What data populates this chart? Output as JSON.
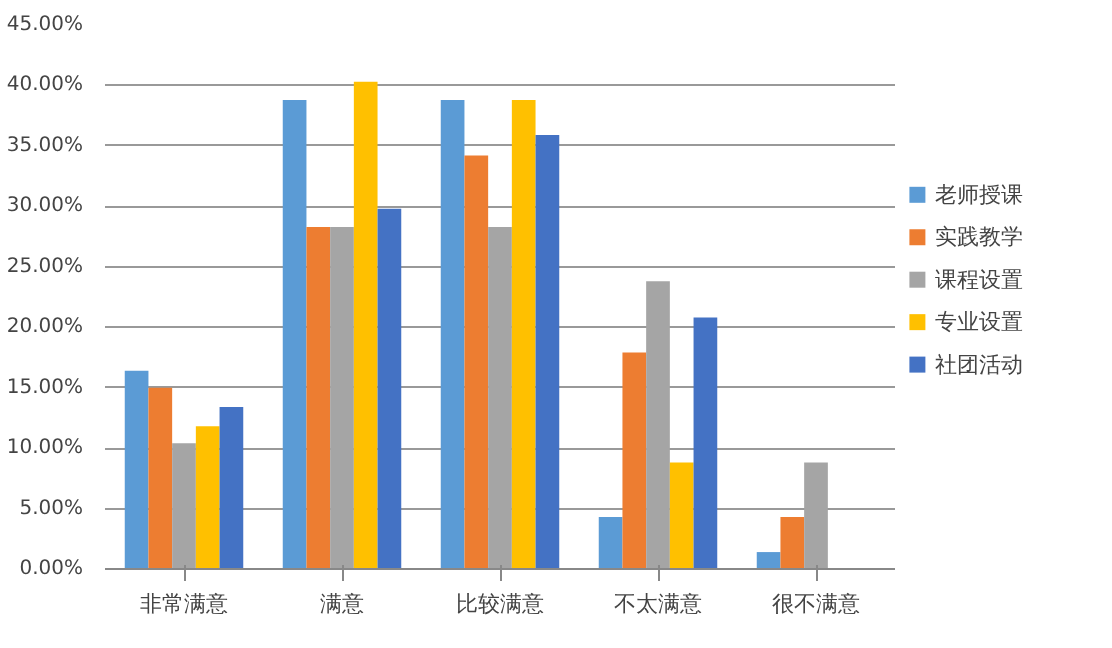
{
  "chart_data": {
    "type": "bar",
    "categories": [
      "非常满意",
      "满意",
      "比较满意",
      "不太满意",
      "很不满意"
    ],
    "series": [
      {
        "name": "老师授课",
        "color": "#5b9bd5",
        "values": [
          16.4,
          38.8,
          38.8,
          4.3,
          1.4
        ]
      },
      {
        "name": "实践教学",
        "color": "#ed7d31",
        "values": [
          15.0,
          28.3,
          34.2,
          17.9,
          4.3
        ]
      },
      {
        "name": "课程设置",
        "color": "#a5a5a5",
        "values": [
          10.4,
          28.3,
          28.3,
          23.8,
          8.8
        ]
      },
      {
        "name": "专业设置",
        "color": "#ffc000",
        "values": [
          11.8,
          40.3,
          38.8,
          8.8,
          0
        ]
      },
      {
        "name": "社团活动",
        "color": "#4472c4",
        "values": [
          13.4,
          29.8,
          35.9,
          20.8,
          0
        ]
      }
    ],
    "ylim": [
      0,
      45
    ],
    "yticks": [
      {
        "value": 0,
        "label": "0.00%"
      },
      {
        "value": 5,
        "label": "5.00%"
      },
      {
        "value": 10,
        "label": "10.00%"
      },
      {
        "value": 15,
        "label": "15.00%"
      },
      {
        "value": 20,
        "label": "20.00%"
      },
      {
        "value": 25,
        "label": "25.00%"
      },
      {
        "value": 30,
        "label": "30.00%"
      },
      {
        "value": 35,
        "label": "35.00%"
      },
      {
        "value": 40,
        "label": "40.00%"
      },
      {
        "value": 45,
        "label": "45.00%"
      }
    ],
    "grid": "y",
    "legend": "right"
  }
}
